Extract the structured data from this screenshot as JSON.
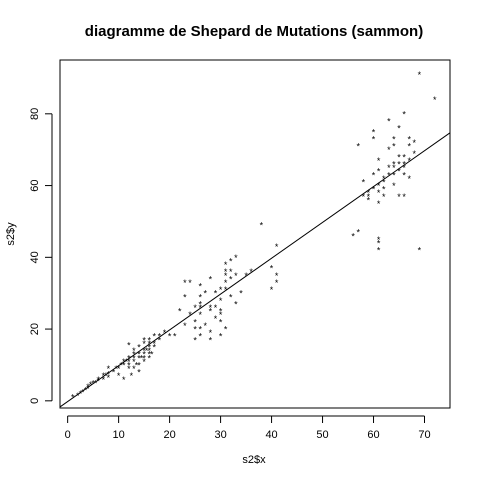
{
  "chart_data": {
    "type": "scatter",
    "title": "diagramme de Shepard de Mutations (sammon)",
    "xlabel": "s2$x",
    "ylabel": "s2$y",
    "xlim": [
      -1.5,
      75
    ],
    "ylim": [
      -2,
      95
    ],
    "xticks": [
      0,
      10,
      20,
      30,
      40,
      50,
      60,
      70
    ],
    "yticks": [
      0,
      20,
      40,
      60,
      80
    ],
    "marker": "*",
    "reference_line": {
      "x": [
        -1.5,
        75
      ],
      "y": [
        -1.7,
        74.7
      ]
    },
    "points": [
      [
        1,
        1
      ],
      [
        2,
        1.5
      ],
      [
        2.5,
        2
      ],
      [
        3,
        2.5
      ],
      [
        3.5,
        3
      ],
      [
        4,
        3.5
      ],
      [
        4,
        4
      ],
      [
        4.5,
        4.5
      ],
      [
        5,
        5
      ],
      [
        5.5,
        5
      ],
      [
        6,
        5.5
      ],
      [
        6,
        6
      ],
      [
        7,
        6
      ],
      [
        7,
        7
      ],
      [
        7.5,
        7
      ],
      [
        8,
        6.5
      ],
      [
        8,
        7.5
      ],
      [
        8,
        9
      ],
      [
        9,
        8
      ],
      [
        9.5,
        9
      ],
      [
        10,
        7
      ],
      [
        10,
        9
      ],
      [
        10.5,
        10
      ],
      [
        11,
        10
      ],
      [
        11,
        11
      ],
      [
        11,
        6
      ],
      [
        11.5,
        11
      ],
      [
        12,
        9
      ],
      [
        12,
        10
      ],
      [
        12,
        11
      ],
      [
        12,
        12
      ],
      [
        12,
        15.5
      ],
      [
        12.5,
        7
      ],
      [
        13,
        9
      ],
      [
        13,
        11
      ],
      [
        13,
        12
      ],
      [
        13,
        13
      ],
      [
        13,
        14
      ],
      [
        13.5,
        10
      ],
      [
        14,
        10
      ],
      [
        14,
        12
      ],
      [
        14,
        13
      ],
      [
        14,
        15
      ],
      [
        14,
        8
      ],
      [
        14.5,
        12
      ],
      [
        15,
        11
      ],
      [
        15,
        12
      ],
      [
        15,
        13
      ],
      [
        15,
        14
      ],
      [
        15,
        16
      ],
      [
        15,
        17
      ],
      [
        15.5,
        14
      ],
      [
        16,
        12
      ],
      [
        16,
        13
      ],
      [
        16,
        14
      ],
      [
        16,
        15
      ],
      [
        16,
        16
      ],
      [
        16,
        17
      ],
      [
        16.5,
        13
      ],
      [
        17,
        15
      ],
      [
        17,
        16
      ],
      [
        17,
        18
      ],
      [
        18,
        17
      ],
      [
        18,
        18
      ],
      [
        19,
        19
      ],
      [
        20,
        18
      ],
      [
        21,
        18
      ],
      [
        22,
        25
      ],
      [
        23,
        21
      ],
      [
        23,
        29
      ],
      [
        23,
        33
      ],
      [
        24,
        24
      ],
      [
        24,
        33
      ],
      [
        25,
        22
      ],
      [
        25,
        20
      ],
      [
        25,
        26
      ],
      [
        25,
        17
      ],
      [
        26,
        18
      ],
      [
        26,
        20
      ],
      [
        26,
        24
      ],
      [
        26,
        27
      ],
      [
        26,
        29
      ],
      [
        26,
        32
      ],
      [
        26,
        26
      ],
      [
        27,
        21
      ],
      [
        27,
        30
      ],
      [
        28,
        19
      ],
      [
        28,
        17
      ],
      [
        28,
        25
      ],
      [
        28,
        26
      ],
      [
        28,
        34
      ],
      [
        29,
        23
      ],
      [
        29,
        26
      ],
      [
        29,
        30
      ],
      [
        30,
        18
      ],
      [
        30,
        22
      ],
      [
        30,
        24
      ],
      [
        30,
        25
      ],
      [
        30,
        28
      ],
      [
        30,
        31
      ],
      [
        31,
        20
      ],
      [
        31,
        31
      ],
      [
        31,
        33
      ],
      [
        31,
        35
      ],
      [
        31,
        36
      ],
      [
        31,
        38
      ],
      [
        32,
        29
      ],
      [
        32,
        34
      ],
      [
        32,
        36
      ],
      [
        32,
        39
      ],
      [
        33,
        27
      ],
      [
        33,
        35
      ],
      [
        33,
        40
      ],
      [
        34,
        30
      ],
      [
        35,
        35
      ],
      [
        36,
        36
      ],
      [
        38,
        49
      ],
      [
        40,
        37
      ],
      [
        40,
        31
      ],
      [
        41,
        33
      ],
      [
        41,
        35
      ],
      [
        41,
        43
      ],
      [
        56,
        46
      ],
      [
        57,
        47
      ],
      [
        57,
        71
      ],
      [
        58,
        61
      ],
      [
        58,
        57
      ],
      [
        59,
        57
      ],
      [
        59,
        56
      ],
      [
        59,
        58
      ],
      [
        60,
        59
      ],
      [
        60,
        63
      ],
      [
        60,
        73
      ],
      [
        60,
        75
      ],
      [
        61,
        42
      ],
      [
        61,
        44
      ],
      [
        61,
        45
      ],
      [
        61,
        55
      ],
      [
        61,
        58
      ],
      [
        61,
        60
      ],
      [
        61,
        64
      ],
      [
        61,
        67
      ],
      [
        62,
        57
      ],
      [
        62,
        59
      ],
      [
        62,
        61
      ],
      [
        62,
        62
      ],
      [
        63,
        63
      ],
      [
        63,
        65
      ],
      [
        63,
        70
      ],
      [
        63,
        78
      ],
      [
        64,
        60
      ],
      [
        64,
        63
      ],
      [
        64,
        65
      ],
      [
        64,
        66
      ],
      [
        64,
        71
      ],
      [
        64,
        73
      ],
      [
        65,
        57
      ],
      [
        65,
        64
      ],
      [
        65,
        66
      ],
      [
        65,
        68
      ],
      [
        65,
        76
      ],
      [
        66,
        57
      ],
      [
        66,
        63
      ],
      [
        66,
        65
      ],
      [
        66,
        66
      ],
      [
        66,
        68
      ],
      [
        66,
        80
      ],
      [
        67,
        62
      ],
      [
        67,
        67
      ],
      [
        67,
        71
      ],
      [
        67,
        73
      ],
      [
        68,
        69
      ],
      [
        68,
        72
      ],
      [
        69,
        42
      ],
      [
        69,
        91
      ],
      [
        72,
        84
      ]
    ]
  }
}
